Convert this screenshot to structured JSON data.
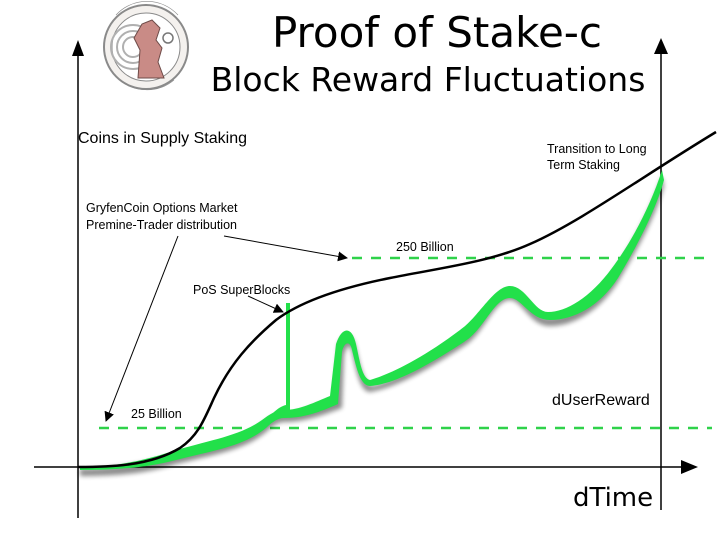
{
  "title_line1": "Proof of Stake-c",
  "title_line2": "Block Reward Fluctuations",
  "logo": {
    "name": "GryfenCoin seal",
    "lettering": [
      "COMMON COIN",
      "GRYFENCOIN"
    ],
    "ring_color": "#9a9a9a",
    "figure_color": "#c98b86"
  },
  "y_axis_label": "Coins in Supply Staking",
  "x_axis_label": "dTime",
  "secondary_axis_label": "dUserReward",
  "annotations": {
    "options_market_line1": "GryfenCoin Options Market",
    "options_market_line2": "Premine-Trader distribution",
    "superblocks": "PoS SuperBlocks",
    "transition_line1": "Transition to Long",
    "transition_line2": "Term Staking",
    "level_low": "25 Billion",
    "level_high": "250 Billion"
  },
  "colors": {
    "supply_curve": "#000000",
    "reward_band": "#22e04a",
    "dashed_levels": "#2fd24a",
    "axes": "#000000"
  }
}
